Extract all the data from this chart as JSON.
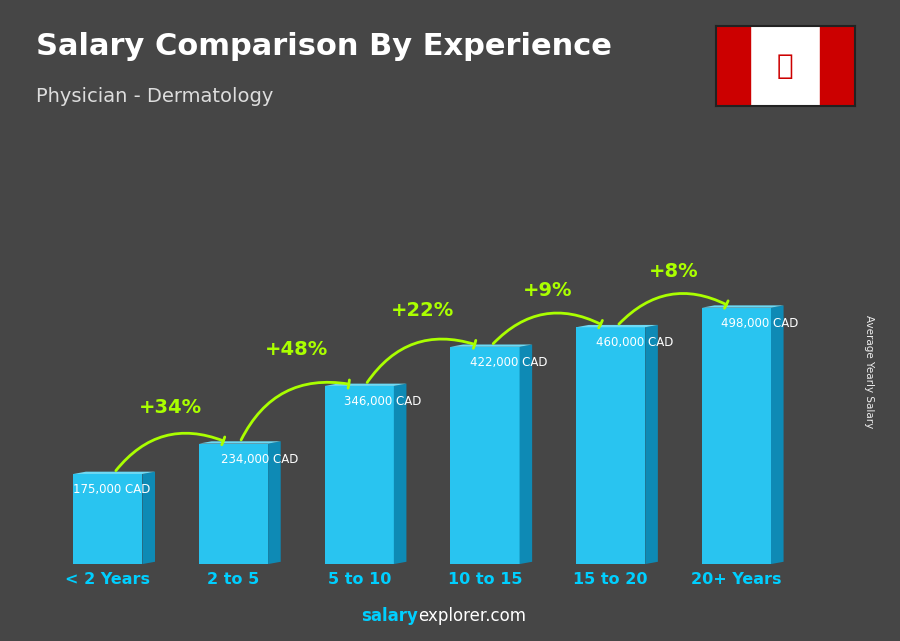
{
  "title": "Salary Comparison By Experience",
  "subtitle": "Physician - Dermatology",
  "categories": [
    "< 2 Years",
    "2 to 5",
    "5 to 10",
    "10 to 15",
    "15 to 20",
    "20+ Years"
  ],
  "values": [
    175000,
    234000,
    346000,
    422000,
    460000,
    498000
  ],
  "value_labels": [
    "175,000 CAD",
    "234,000 CAD",
    "346,000 CAD",
    "422,000 CAD",
    "460,000 CAD",
    "498,000 CAD"
  ],
  "pct_changes": [
    "+34%",
    "+48%",
    "+22%",
    "+9%",
    "+8%"
  ],
  "bar_face_color": "#29c4f0",
  "bar_side_color": "#0e8ab5",
  "bar_top_color": "#6ddaf5",
  "bg_color": "#464646",
  "title_color": "#ffffff",
  "subtitle_color": "#dddddd",
  "value_label_color": "#ffffff",
  "pct_color": "#aaff00",
  "xlabel_color": "#00cfff",
  "footer_salary_color": "#00cfff",
  "footer_explorer_color": "#ffffff",
  "ylabel_text": "Average Yearly Salary",
  "ylabel_color": "#ffffff",
  "arrow_color": "#aaff00"
}
